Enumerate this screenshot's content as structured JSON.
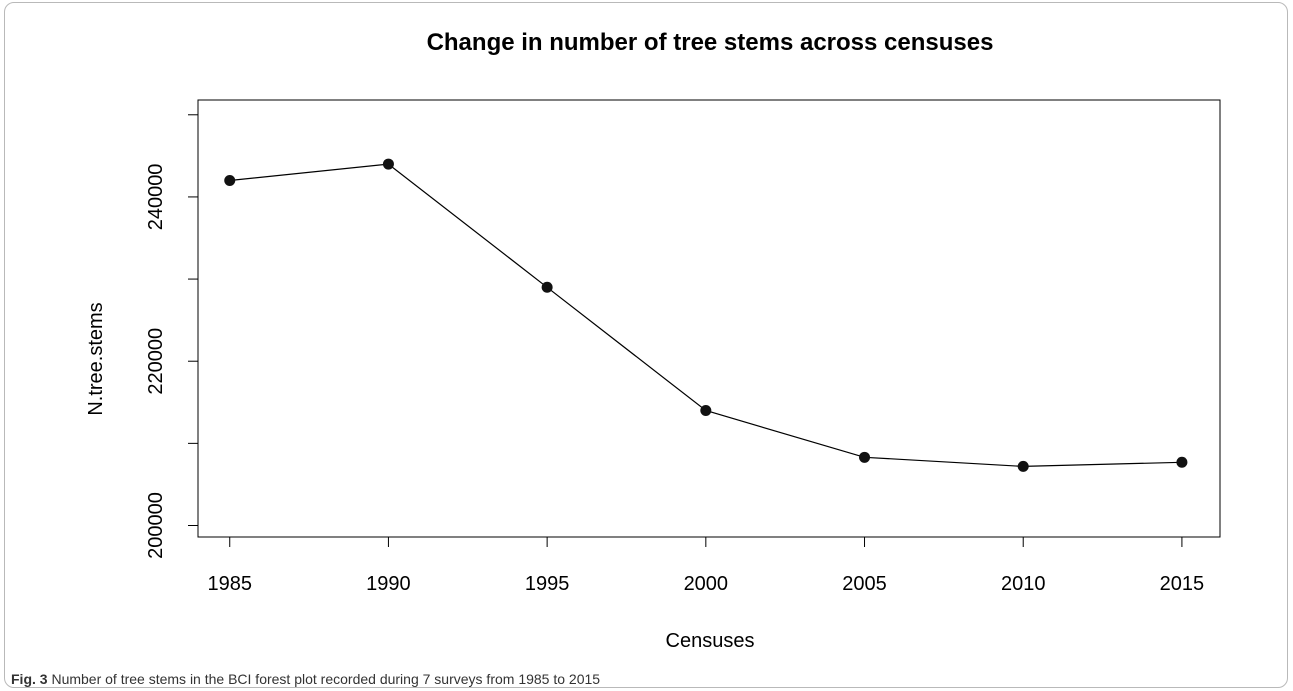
{
  "figure": {
    "caption_label": "Fig. 3",
    "caption_text": "Number of tree stems in the BCI forest plot recorded during 7 surveys from 1985 to 2015"
  },
  "chart_data": {
    "type": "line",
    "title": "Change in number of tree stems across censuses",
    "xlabel": "Censuses",
    "ylabel": "N.tree.stems",
    "x": [
      1985,
      1990,
      1995,
      2000,
      2005,
      2010,
      2015
    ],
    "series": [
      {
        "values": [
          242000,
          244000,
          229000,
          214000,
          208300,
          207200,
          207700
        ]
      }
    ],
    "xticks": [
      "1985",
      "1990",
      "1995",
      "2000",
      "2005",
      "2010",
      "2015"
    ],
    "yticks": [
      200000,
      210000,
      220000,
      230000,
      240000,
      250000
    ],
    "ytick_labels": [
      "200000",
      "",
      "220000",
      "",
      "240000",
      ""
    ],
    "xlim": [
      1984,
      2016.2
    ],
    "ylim": [
      198600,
      251800
    ],
    "grid": false,
    "colors": {
      "line": "#000000",
      "marker": "#111111",
      "axis": "#000000"
    }
  }
}
